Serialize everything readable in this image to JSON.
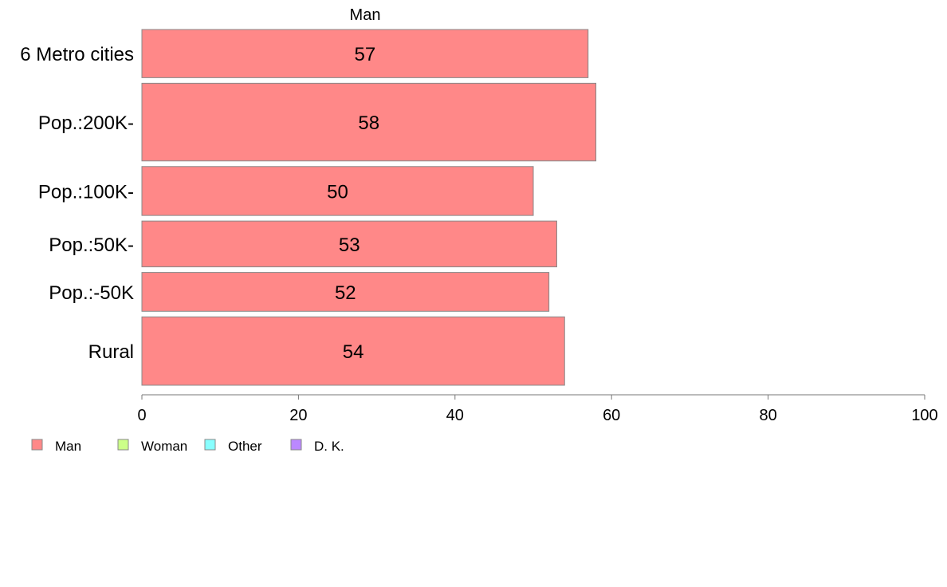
{
  "chart_data": {
    "type": "bar",
    "orientation": "horizontal",
    "series_title": "Man",
    "categories": [
      "6 Metro cities",
      "Pop.:200K-",
      "Pop.:100K-",
      "Pop.:50K-",
      "Pop.:-50K",
      "Rural"
    ],
    "category_weights": [
      0.62,
      1.0,
      0.63,
      0.59,
      0.5,
      0.88
    ],
    "values": [
      57,
      58,
      50,
      53,
      52,
      54
    ],
    "xlim": [
      0,
      100
    ],
    "xticks": [
      0,
      20,
      40,
      60,
      80,
      100
    ],
    "grid": false,
    "bar_color": "#ff8888",
    "legend_position": "bottom-left",
    "legend": [
      {
        "label": "Man",
        "color": "#ff8888"
      },
      {
        "label": "Woman",
        "color": "#ccff88"
      },
      {
        "label": "Other",
        "color": "#88ffff"
      },
      {
        "label": "D. K.",
        "color": "#bb88ff"
      }
    ]
  }
}
